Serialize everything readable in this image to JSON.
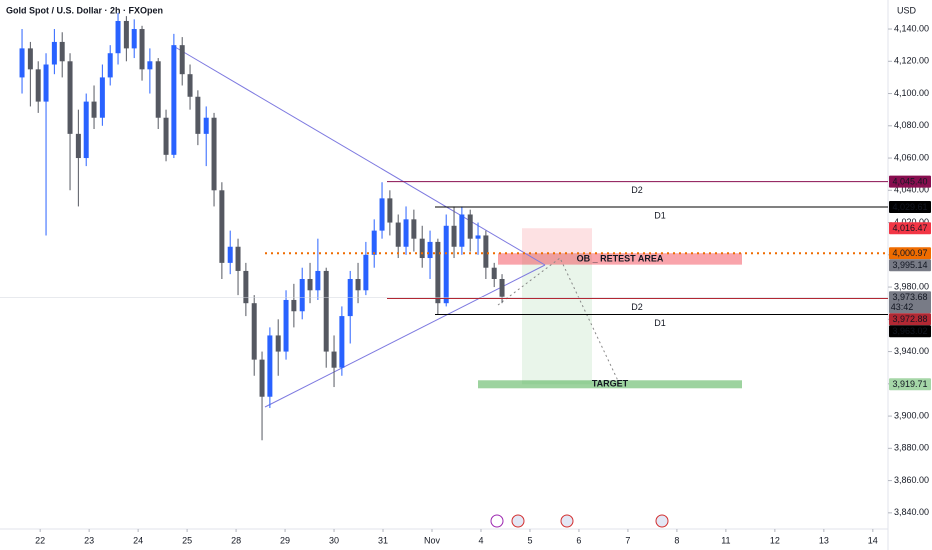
{
  "chart_data": {
    "type": "candlestick",
    "title": "Gold Spot / U.S. Dollar · 2h · FXOpen",
    "y_label": "USD",
    "up_color": "#2962ff",
    "down_color": "#555861",
    "x": [
      -0.37,
      -0.2,
      -0.04,
      0.12,
      0.29,
      0.45,
      0.61,
      0.78,
      0.94,
      1.1,
      1.27,
      1.43,
      1.59,
      1.76,
      1.92,
      2.08,
      2.24,
      2.41,
      2.57,
      2.73,
      2.9,
      3.06,
      3.22,
      3.39,
      3.55,
      3.71,
      3.88,
      4.04,
      4.2,
      4.37,
      4.53,
      4.69,
      4.86,
      5.02,
      5.18,
      5.35,
      5.51,
      5.67,
      5.84,
      6.0,
      6.16,
      6.33,
      6.49,
      6.65,
      6.82,
      6.98,
      7.14,
      7.31,
      7.47,
      7.63,
      7.8,
      7.96,
      8.12,
      8.29,
      8.45,
      8.61,
      8.78,
      8.94,
      9.1,
      9.27,
      9.43
    ],
    "open": [
      4110,
      4128,
      4115,
      4095,
      4118,
      4132,
      4120,
      4075,
      4060,
      4095,
      4085,
      4110,
      4125,
      4145,
      4128,
      4140,
      4115,
      4120,
      4085,
      4062,
      4130,
      4112,
      4098,
      4075,
      4085,
      4040,
      3995,
      4005,
      3990,
      3970,
      3935,
      3912,
      3950,
      3940,
      3972,
      3965,
      3985,
      3978,
      3990,
      3940,
      3930,
      3962,
      3985,
      3978,
      4000,
      4015,
      4035,
      4020,
      4005,
      4022,
      4010,
      3998,
      4008,
      3970,
      4018,
      4005,
      4025,
      4010,
      4012,
      3992,
      3985
    ],
    "high": [
      4140,
      4132,
      4120,
      4125,
      4140,
      4138,
      4125,
      4090,
      4100,
      4105,
      4118,
      4130,
      4150,
      4148,
      4146,
      4142,
      4128,
      4122,
      4090,
      4137,
      4135,
      4118,
      4102,
      4092,
      4088,
      4045,
      4015,
      4010,
      3995,
      3975,
      3940,
      3955,
      3960,
      3978,
      3982,
      3992,
      3995,
      4010,
      3992,
      3950,
      3968,
      3990,
      3995,
      4008,
      4022,
      4045,
      4040,
      4025,
      4030,
      4028,
      4018,
      4015,
      4010,
      4025,
      4030,
      4030,
      4028,
      4020,
      4015,
      3995,
      3988
    ],
    "low": [
      4100,
      4092,
      4088,
      4012,
      4112,
      4110,
      4040,
      4030,
      4055,
      4078,
      4080,
      4105,
      4118,
      4120,
      4122,
      4108,
      4100,
      4078,
      4058,
      4060,
      4105,
      4090,
      4068,
      4055,
      4030,
      3985,
      3988,
      3975,
      3962,
      3925,
      3885,
      3905,
      3925,
      3935,
      3955,
      3960,
      3970,
      3972,
      3930,
      3918,
      3925,
      3945,
      3970,
      3975,
      3992,
      4010,
      4012,
      3998,
      4000,
      4002,
      3992,
      3985,
      3963,
      3968,
      3998,
      4000,
      4002,
      4000,
      3985,
      3980,
      3970
    ],
    "close": [
      4128,
      4115,
      4095,
      4118,
      4132,
      4120,
      4075,
      4060,
      4095,
      4085,
      4110,
      4125,
      4145,
      4128,
      4140,
      4115,
      4120,
      4085,
      4062,
      4130,
      4112,
      4098,
      4075,
      4085,
      4040,
      3995,
      4005,
      3990,
      3970,
      3935,
      3912,
      3950,
      3940,
      3972,
      3965,
      3985,
      3978,
      3990,
      3940,
      3930,
      3962,
      3985,
      3978,
      4000,
      4015,
      4035,
      4020,
      4005,
      4022,
      4010,
      3998,
      4008,
      3970,
      4018,
      4005,
      4025,
      4010,
      4012,
      3992,
      3985,
      3974
    ],
    "xlim": [
      -0.82,
      17.31
    ],
    "xticks": [
      {
        "value": 0,
        "label": "22"
      },
      {
        "value": 1,
        "label": "23"
      },
      {
        "value": 2,
        "label": "24"
      },
      {
        "value": 3,
        "label": "25"
      },
      {
        "value": 4,
        "label": "28"
      },
      {
        "value": 5,
        "label": "29"
      },
      {
        "value": 6,
        "label": "30"
      },
      {
        "value": 7,
        "label": "31"
      },
      {
        "value": 8,
        "label": "Nov"
      },
      {
        "value": 9,
        "label": "4"
      },
      {
        "value": 10,
        "label": "5"
      },
      {
        "value": 11,
        "label": "6"
      },
      {
        "value": 12,
        "label": "7"
      },
      {
        "value": 13,
        "label": "8"
      },
      {
        "value": 14,
        "label": "11"
      },
      {
        "value": 15,
        "label": "12"
      },
      {
        "value": 16,
        "label": "13"
      },
      {
        "value": 17,
        "label": "14"
      }
    ],
    "ylim": [
      3830.6,
      4158
    ],
    "yticks": [
      {
        "value": 3840,
        "label": "3,840.00"
      },
      {
        "value": 3860,
        "label": "3,860.00"
      },
      {
        "value": 3880,
        "label": "3,880.00"
      },
      {
        "value": 3900,
        "label": "3,900.00"
      },
      {
        "value": 3920,
        "label": "3,920.00"
      },
      {
        "value": 3940,
        "label": "3,940.00"
      },
      {
        "value": 3960,
        "label": "3,960.00"
      },
      {
        "value": 3980,
        "label": "3,980.00"
      },
      {
        "value": 4000,
        "label": "4,000.00"
      },
      {
        "value": 4020,
        "label": "4,020.00"
      },
      {
        "value": 4040,
        "label": "4,040.00"
      },
      {
        "value": 4060,
        "label": "4,060.00"
      },
      {
        "value": 4080,
        "label": "4,080.00"
      },
      {
        "value": 4100,
        "label": "4,100.00"
      },
      {
        "value": 4120,
        "label": "4,120.00"
      },
      {
        "value": 4140,
        "label": "4,140.00"
      }
    ],
    "price_tags": [
      {
        "value": 4045.4,
        "label": "4,045.40",
        "color": "#880e4f",
        "name": "D2"
      },
      {
        "value": 4029.61,
        "label": "4,029.61",
        "color": "#000000",
        "name": "D1"
      },
      {
        "value": 4016.47,
        "label": "4,016.47",
        "color": "#f23645"
      },
      {
        "value": 4000.97,
        "label": "4,000.97",
        "color": "#ef6c00"
      },
      {
        "value": 3995.14,
        "label": "3,995.14",
        "color": "#787b86",
        "name": "OB _ RETEST AREA"
      },
      {
        "value": 3973.68,
        "label": "3,973.68",
        "color": "#787b86",
        "countdown": "43:42"
      },
      {
        "value": 3972.88,
        "label": "3,972.88",
        "color": "#b22833",
        "name": "D2"
      },
      {
        "value": 3963.02,
        "label": "3,963.02",
        "color": "#000000",
        "name": "D1"
      },
      {
        "value": 3919.71,
        "label": "3,919.71",
        "color": "#a5d6a7",
        "text_color": "#1b1b1b",
        "name": "TARGET"
      }
    ]
  }
}
